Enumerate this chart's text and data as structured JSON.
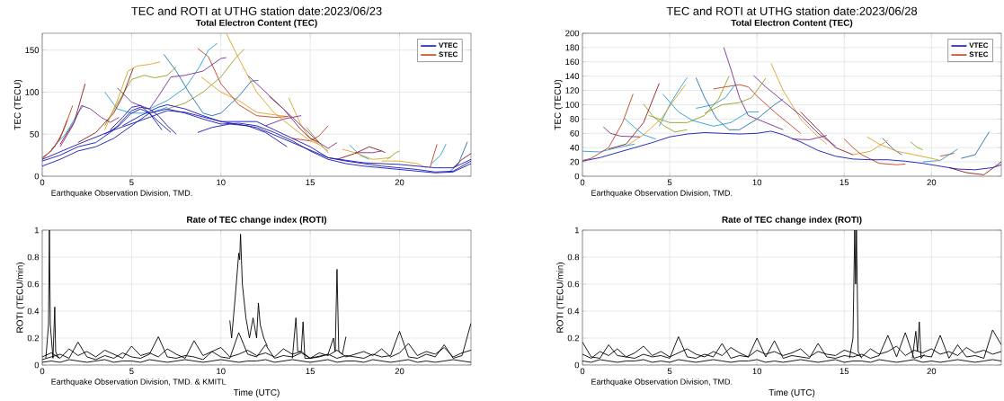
{
  "chart_data": [
    {
      "type": "line",
      "title": "TEC and ROTI at UTHG station date:2023/06/23",
      "subtitle": "Total Electron Content (TEC)",
      "ylabel": "TEC (TECU)",
      "xlim": [
        0,
        24
      ],
      "ylim": [
        0,
        170
      ],
      "xticks": [
        0,
        5,
        10,
        15,
        20
      ],
      "yticks": [
        0,
        50,
        100,
        150
      ],
      "grid": true,
      "legend": "top right",
      "annotations": [
        "Earthquake Observation Division, TMD."
      ],
      "series": [
        {
          "name": "VTEC",
          "color": "#1515b5",
          "x": [
            0,
            1,
            2,
            3,
            4,
            5,
            6,
            7,
            8,
            9,
            10,
            11,
            12,
            13,
            14,
            15,
            16,
            17,
            18,
            19,
            20,
            21,
            22,
            23,
            24
          ],
          "values": [
            12,
            20,
            30,
            35,
            45,
            60,
            75,
            80,
            75,
            68,
            62,
            63,
            60,
            52,
            42,
            30,
            20,
            15,
            12,
            10,
            8,
            6,
            4,
            5,
            15
          ]
        },
        {
          "color": "#1515b5",
          "x": [
            0,
            1,
            2,
            3,
            4,
            5,
            5.5,
            6,
            6.5,
            7,
            7.5
          ],
          "values": [
            18,
            25,
            35,
            40,
            55,
            78,
            82,
            80,
            72,
            60,
            50
          ]
        },
        {
          "color": "#1515b5",
          "x": [
            3.5,
            4.3,
            5,
            5.5,
            6,
            6.7
          ],
          "values": [
            50,
            60,
            75,
            80,
            75,
            55
          ]
        },
        {
          "color": "#1515b5",
          "x": [
            3.8,
            4.5,
            5,
            5.5,
            6,
            6.5,
            7.2
          ],
          "values": [
            55,
            70,
            82,
            84,
            75,
            65,
            52
          ]
        },
        {
          "color": "#1515b5",
          "x": [
            4.5,
            5.5,
            6.5,
            7,
            8,
            9,
            10,
            11,
            12,
            13,
            14,
            15,
            16,
            17,
            18,
            19,
            20,
            21,
            22,
            23,
            24
          ],
          "values": [
            60,
            72,
            82,
            85,
            80,
            72,
            65,
            65,
            65,
            55,
            45,
            35,
            22,
            18,
            15,
            12,
            10,
            8,
            5,
            6,
            18
          ]
        },
        {
          "color": "#1515b5",
          "x": [
            8.7,
            9.5,
            10.5,
            11.5,
            12.5,
            13.7
          ],
          "values": [
            52,
            58,
            62,
            60,
            52,
            35
          ]
        },
        {
          "color": "#1515b5",
          "x": [
            0,
            2,
            4,
            6,
            7,
            8,
            10,
            12,
            14,
            16,
            18,
            20,
            22,
            23,
            24
          ],
          "values": [
            20,
            38,
            55,
            70,
            78,
            76,
            65,
            58,
            40,
            22,
            16,
            14,
            10,
            10,
            20
          ]
        },
        {
          "name": "STEC",
          "color": "#c04020",
          "x": [
            0,
            0.7,
            1.2,
            1.7
          ],
          "values": [
            20,
            35,
            55,
            84
          ]
        },
        {
          "color": "#8b1a1a",
          "x": [
            0,
            0.5,
            1,
            1.4
          ],
          "values": [
            22,
            30,
            45,
            67
          ]
        },
        {
          "color": "#7b2d8b",
          "x": [
            1,
            1.7,
            2.2,
            2.7,
            3.3,
            3.8,
            4.3
          ],
          "values": [
            35,
            60,
            84,
            80,
            70,
            64,
            70
          ]
        },
        {
          "color": "#8b1a1a",
          "x": [
            1,
            1.8,
            2.4
          ],
          "values": [
            38,
            65,
            110
          ]
        },
        {
          "color": "#20a0d0",
          "x": [
            0.5,
            1.3,
            2,
            2.3
          ],
          "values": [
            32,
            50,
            75,
            84
          ]
        },
        {
          "color": "#e0a020",
          "x": [
            3.5,
            4.2,
            4.8,
            5.3,
            6,
            6.6
          ],
          "values": [
            55,
            90,
            125,
            131,
            133,
            136
          ]
        },
        {
          "color": "#8b1a1a",
          "x": [
            2,
            3,
            4,
            4.5,
            5.1
          ],
          "values": [
            40,
            52,
            75,
            95,
            129
          ]
        },
        {
          "color": "#90a020",
          "x": [
            3.5,
            4.3,
            5,
            5.7,
            6.3,
            7,
            7.5
          ],
          "values": [
            60,
            90,
            115,
            120,
            117,
            120,
            130
          ]
        },
        {
          "color": "#20a0d0",
          "x": [
            3.5,
            4.2,
            5,
            6,
            7
          ],
          "values": [
            100,
            80,
            75,
            75,
            82
          ]
        },
        {
          "color": "#7b2d8b",
          "x": [
            4.2,
            5,
            6,
            6.5,
            7.2,
            8,
            9,
            10,
            10.3
          ],
          "values": [
            105,
            88,
            80,
            95,
            118,
            120,
            125,
            140,
            141
          ]
        },
        {
          "color": "#1f6fb0",
          "x": [
            6.8,
            7.5,
            8.2,
            9,
            9.5,
            10,
            11,
            11.7,
            12.1
          ],
          "values": [
            145,
            125,
            100,
            75,
            72,
            75,
            95,
            113,
            114
          ]
        },
        {
          "color": "#20a0d0",
          "x": [
            6,
            7,
            8,
            8.8,
            9.3,
            9.8
          ],
          "values": [
            80,
            90,
            105,
            130,
            150,
            158
          ]
        },
        {
          "color": "#90a020",
          "x": [
            7,
            8,
            9,
            10,
            10.8,
            11.3
          ],
          "values": [
            80,
            87,
            100,
            118,
            140,
            151
          ]
        },
        {
          "color": "#c04020",
          "x": [
            8.7,
            9.3,
            10,
            11,
            12,
            13,
            13.8
          ],
          "values": [
            152,
            142,
            110,
            85,
            72,
            70,
            71
          ]
        },
        {
          "color": "#e0a020",
          "x": [
            8.9,
            10,
            11,
            12,
            13,
            13.7
          ],
          "values": [
            118,
            100,
            90,
            76,
            73,
            71
          ]
        },
        {
          "color": "#e0a020",
          "x": [
            10.3,
            11,
            12,
            13,
            14,
            15,
            15.5
          ],
          "values": [
            170,
            140,
            100,
            75,
            58,
            42,
            38
          ]
        },
        {
          "color": "#7b2d8b",
          "x": [
            11.5,
            12.5,
            13.5,
            14.5,
            15.5,
            16,
            16.5
          ],
          "values": [
            120,
            100,
            80,
            60,
            40,
            33,
            40
          ]
        },
        {
          "color": "#8b1a1a",
          "x": [
            12.7,
            13.5,
            14.5,
            15,
            15.5
          ],
          "values": [
            95,
            80,
            55,
            45,
            40
          ]
        },
        {
          "color": "#7b2d8b",
          "x": [
            12.5,
            13.5,
            14.5
          ],
          "values": [
            60,
            68,
            72
          ]
        },
        {
          "color": "#c04020",
          "x": [
            14,
            15,
            15.5,
            16
          ],
          "values": [
            45,
            42,
            48,
            60
          ]
        },
        {
          "color": "#e0a020",
          "x": [
            13.8,
            14.5,
            15,
            16
          ],
          "values": [
            93,
            60,
            45,
            30
          ]
        },
        {
          "color": "#90a020",
          "x": [
            14.8,
            15.5,
            16
          ],
          "values": [
            58,
            40,
            28
          ]
        },
        {
          "color": "#8b1a1a",
          "x": [
            16.5,
            17.5,
            18.3,
            19,
            19.2
          ],
          "values": [
            20,
            27,
            35,
            30,
            28
          ]
        },
        {
          "color": "#e0a020",
          "x": [
            16.8,
            17.5,
            18.5,
            19.5
          ],
          "values": [
            32,
            28,
            20,
            22
          ]
        },
        {
          "color": "#20a0d0",
          "x": [
            17.2,
            17.8,
            18.3
          ],
          "values": [
            37,
            25,
            20
          ]
        },
        {
          "color": "#7b2d8b",
          "x": [
            17.5,
            18.5,
            19
          ],
          "values": [
            28,
            28,
            30
          ]
        },
        {
          "color": "#90a020",
          "x": [
            19.3,
            19.8,
            20
          ],
          "values": [
            20,
            28,
            30
          ]
        },
        {
          "color": "#e0a020",
          "x": [
            19,
            20,
            21,
            21.5
          ],
          "values": [
            18,
            18,
            15,
            10
          ]
        },
        {
          "color": "#c04020",
          "x": [
            21.7,
            22.1
          ],
          "values": [
            10,
            38
          ]
        },
        {
          "color": "#20a0d0",
          "x": [
            21.8,
            22.3,
            22.6
          ],
          "values": [
            15,
            25,
            38
          ]
        },
        {
          "color": "#1f6fb0",
          "x": [
            22.8,
            23.3,
            23.8
          ],
          "values": [
            5,
            15,
            41
          ]
        },
        {
          "color": "#8b1a1a",
          "x": [
            23,
            23.5,
            24
          ],
          "values": [
            10,
            20,
            27
          ]
        }
      ]
    },
    {
      "type": "line",
      "title": "TEC and ROTI at UTHG station date:2023/06/28",
      "subtitle": "Total Electron Content (TEC)",
      "ylabel": "TEC (TECU)",
      "xlim": [
        0,
        24
      ],
      "ylim": [
        0,
        200
      ],
      "xticks": [
        0,
        5,
        10,
        15,
        20
      ],
      "yticks": [
        0,
        20,
        40,
        60,
        80,
        100,
        120,
        140,
        160,
        180,
        200
      ],
      "grid": true,
      "legend": "top right",
      "annotations": [
        "Earthquake Observation Division, TMD."
      ],
      "series": [
        {
          "name": "VTEC",
          "color": "#1515b5",
          "x": [
            0,
            1,
            2,
            3,
            4,
            5,
            6,
            7,
            8,
            9,
            10,
            10.8,
            11.5,
            12.5,
            13.5,
            14.5,
            15.5,
            16.5,
            17.5,
            18.5,
            19.5,
            20.5,
            21.5,
            22.5,
            23.5,
            24
          ],
          "values": [
            21,
            26,
            33,
            40,
            47,
            55,
            59,
            61,
            60,
            59,
            60,
            63,
            58,
            48,
            36,
            28,
            24,
            23,
            23,
            21,
            18,
            14,
            10,
            9,
            12,
            16
          ]
        },
        {
          "name": "STEC",
          "color": "#c04020",
          "x": [
            0,
            0.5,
            1.5,
            2.3,
            2.9
          ],
          "values": [
            22,
            25,
            40,
            75,
            115
          ]
        },
        {
          "color": "#20a0d0",
          "x": [
            0,
            1,
            2,
            3
          ],
          "values": [
            35,
            34,
            40,
            45
          ]
        },
        {
          "color": "#7b2d8b",
          "x": [
            1.2,
            1.6,
            2.2,
            3.3
          ],
          "values": [
            69,
            60,
            56,
            55
          ]
        },
        {
          "color": "#20a0d0",
          "x": [
            2.4,
            3,
            3.5,
            4.2
          ],
          "values": [
            81,
            68,
            58,
            52
          ]
        },
        {
          "color": "#8b1a1a",
          "x": [
            1.5,
            2.5,
            3.5,
            4.4
          ],
          "values": [
            38,
            45,
            75,
            130
          ]
        },
        {
          "color": "#90a020",
          "x": [
            3.5,
            4,
            4.7,
            5.3,
            6
          ],
          "values": [
            101,
            85,
            70,
            62,
            65
          ]
        },
        {
          "color": "#e0a020",
          "x": [
            2.5,
            3.5,
            4.5,
            5.2,
            5.9
          ],
          "values": [
            42,
            58,
            80,
            105,
            128
          ]
        },
        {
          "color": "#20a0d0",
          "x": [
            4.4,
            5,
            5.5,
            6
          ],
          "values": [
            70,
            100,
            120,
            138
          ]
        },
        {
          "color": "#20a0d0",
          "x": [
            4.6,
            5.5,
            6.3,
            7.5,
            8.5,
            9.5,
            10.1
          ],
          "values": [
            115,
            90,
            78,
            70,
            75,
            90,
            90
          ]
        },
        {
          "color": "#90a020",
          "x": [
            3.8,
            5,
            6,
            7,
            7.8,
            8.4
          ],
          "values": [
            85,
            75,
            75,
            85,
            108,
            140
          ]
        },
        {
          "color": "#1f6fb0",
          "x": [
            6.5,
            7,
            7.7,
            8.4,
            9,
            10,
            11,
            11.5
          ],
          "values": [
            138,
            110,
            80,
            65,
            65,
            80,
            100,
            108
          ]
        },
        {
          "color": "#20a0d0",
          "x": [
            6.5,
            7.5,
            8.2,
            8.8
          ],
          "values": [
            95,
            100,
            110,
            130
          ]
        },
        {
          "color": "#c04020",
          "x": [
            7.5,
            8.2,
            9,
            9.5,
            10,
            11,
            12.5
          ],
          "values": [
            122,
            125,
            128,
            125,
            112,
            90,
            60
          ]
        },
        {
          "color": "#7b2d8b",
          "x": [
            8.1,
            8.5,
            9,
            9.5,
            10.5,
            11.5
          ],
          "values": [
            180,
            150,
            110,
            85,
            75,
            65
          ]
        },
        {
          "color": "#90a020",
          "x": [
            7,
            8,
            9,
            9.7,
            10.5
          ],
          "values": [
            88,
            100,
            103,
            110,
            137
          ]
        },
        {
          "color": "#7b2d8b",
          "x": [
            9.8,
            10.5,
            11.5,
            12.5,
            13.5,
            14.5
          ],
          "values": [
            141,
            125,
            105,
            85,
            60,
            42
          ]
        },
        {
          "color": "#e0a020",
          "x": [
            10.8,
            11.5,
            12.5,
            13.5,
            14
          ],
          "values": [
            158,
            120,
            80,
            55,
            45
          ]
        },
        {
          "color": "#7b2d8b",
          "x": [
            12,
            13,
            14
          ],
          "values": [
            52,
            51,
            57
          ]
        },
        {
          "color": "#8b1a1a",
          "x": [
            12.5,
            13.5,
            14.5,
            15.5
          ],
          "values": [
            90,
            65,
            40,
            30
          ]
        },
        {
          "color": "#c04020",
          "x": [
            15,
            15.5,
            16,
            17,
            18,
            18.5
          ],
          "values": [
            52,
            40,
            30,
            18,
            16,
            17
          ]
        },
        {
          "color": "#e0a020",
          "x": [
            15.5,
            16.5,
            17.5
          ],
          "values": [
            30,
            35,
            50
          ]
        },
        {
          "color": "#e0a020",
          "x": [
            16.3,
            17,
            18,
            19,
            20,
            20.5
          ],
          "values": [
            55,
            45,
            35,
            30,
            25,
            22
          ]
        },
        {
          "color": "#1f6fb0",
          "x": [
            17.2,
            17.8,
            18.3
          ],
          "values": [
            53,
            38,
            30
          ]
        },
        {
          "color": "#90a020",
          "x": [
            18.8,
            19.2,
            19.5
          ],
          "values": [
            48,
            40,
            37
          ]
        },
        {
          "color": "#20a0d0",
          "x": [
            19.5,
            20.5,
            21.5
          ],
          "values": [
            20,
            22,
            38
          ]
        },
        {
          "color": "#1f6fb0",
          "x": [
            21.7,
            22.5,
            23.3
          ],
          "values": [
            25,
            30,
            62
          ]
        },
        {
          "color": "#8b1a1a",
          "x": [
            21,
            22,
            23,
            24
          ],
          "values": [
            12,
            5,
            2,
            20
          ]
        },
        {
          "color": "#c04020",
          "x": [
            20.5,
            21.3
          ],
          "values": [
            28,
            32
          ]
        }
      ]
    },
    {
      "type": "line",
      "title": "Rate of TEC change index (ROTI)",
      "xlabel": "Time (UTC)",
      "ylabel": "ROTI (TECU/min)",
      "xlim": [
        0,
        24
      ],
      "ylim": [
        0,
        1
      ],
      "xticks": [
        0,
        5,
        10,
        15,
        20
      ],
      "yticks": [
        0,
        0.2,
        0.4,
        0.6,
        0.8,
        1
      ],
      "grid": true,
      "annotations": [
        "Earthquake Observation Division, TMD. & KMITL"
      ],
      "x": [
        0,
        0.5,
        1,
        1.5,
        2,
        2.5,
        3,
        3.5,
        4,
        4.5,
        5,
        5.5,
        6,
        6.5,
        7,
        7.5,
        8,
        8.5,
        9,
        9.5,
        10,
        10.5,
        11,
        11.5,
        12,
        12.5,
        13,
        13.5,
        14,
        14.5,
        15,
        15.5,
        16,
        16.5,
        17,
        17.5,
        18,
        18.5,
        19,
        19.5,
        20,
        20.5,
        21,
        21.5,
        22,
        22.5,
        23,
        23.5,
        24
      ],
      "series": [
        {
          "color": "#000000",
          "values": [
            0.02,
            0.03,
            0.02,
            0.04,
            0.03,
            0.02,
            0.03,
            0.04,
            0.02,
            0.03,
            0.03,
            0.02,
            0.04,
            0.03,
            0.02,
            0.03,
            0.04,
            0.03,
            0.02,
            0.03,
            0.04,
            0.03,
            0.02,
            0.03,
            0.03,
            0.04,
            0.02,
            0.03,
            0.04,
            0.03,
            0.02,
            0.03,
            0.04,
            0.02,
            0.03,
            0.03,
            0.02,
            0.04,
            0.03,
            0.02,
            0.03,
            0.04,
            0.02,
            0.03,
            0.02,
            0.03,
            0.04,
            0.03,
            0.02
          ]
        },
        {
          "color": "#000000",
          "values": [
            0.06,
            0.09,
            0.05,
            0.12,
            0.07,
            0.1,
            0.06,
            0.11,
            0.08,
            0.05,
            0.14,
            0.07,
            0.09,
            0.06,
            0.12,
            0.08,
            0.05,
            0.18,
            0.07,
            0.1,
            0.13,
            0.06,
            0.08,
            0.11,
            0.07,
            0.09,
            0.06,
            0.12,
            0.08,
            0.1,
            0.05,
            0.09,
            0.07,
            0.11,
            0.06,
            0.08,
            0.1,
            0.07,
            0.12,
            0.06,
            0.09,
            0.16,
            0.07,
            0.1,
            0.08,
            0.13,
            0.06,
            0.09,
            0.11
          ]
        },
        {
          "color": "#000000",
          "values": [
            0.04,
            0.06,
            0.08,
            0.05,
            0.17,
            0.06,
            0.04,
            0.07,
            0.05,
            0.09,
            0.06,
            0.05,
            0.08,
            0.21,
            0.06,
            0.05,
            0.07,
            0.06,
            0.04,
            0.1,
            0.06,
            0.05,
            0.24,
            0.08,
            0.06,
            0.15,
            0.05,
            0.07,
            0.06,
            0.09,
            0.05,
            0.06,
            0.08,
            0.05,
            0.07,
            0.06,
            0.05,
            0.08,
            0.06,
            0.07,
            0.25,
            0.06,
            0.05,
            0.08,
            0.06,
            0.15,
            0.05,
            0.07,
            0.31
          ]
        },
        {
          "color": "#000000",
          "x": [
            0.2,
            0.35,
            0.4,
            0.45,
            0.6,
            0.7,
            0.75,
            0.9
          ],
          "values": [
            0.05,
            0.3,
            1.0,
            0.3,
            0.05,
            0.43,
            0.1,
            0.05
          ]
        },
        {
          "color": "#000000",
          "x": [
            10.5,
            10.6,
            10.8,
            11,
            11.05,
            11.1,
            11.2,
            11.4,
            11.6,
            11.8,
            12,
            12.1,
            12.2,
            12.4,
            12.6
          ],
          "values": [
            0.33,
            0.2,
            0.5,
            0.83,
            0.78,
            0.97,
            0.6,
            0.35,
            0.2,
            0.35,
            0.2,
            0.46,
            0.3,
            0.2,
            0.14
          ]
        },
        {
          "color": "#000000",
          "x": [
            14,
            14.2,
            14.3,
            14.5,
            14.6,
            14.7,
            15,
            16,
            16.3,
            16.4,
            16.5,
            16.6,
            16.8,
            17
          ],
          "values": [
            0.05,
            0.35,
            0.1,
            0.1,
            0.32,
            0.05,
            0.05,
            0.08,
            0.2,
            0.1,
            0.71,
            0.1,
            0.08,
            0.21
          ]
        }
      ]
    },
    {
      "type": "line",
      "title": "Rate of TEC change index (ROTI)",
      "xlabel": "Time (UTC)",
      "ylabel": "ROTI (TECU/min)",
      "xlim": [
        0,
        24
      ],
      "ylim": [
        0,
        1
      ],
      "xticks": [
        0,
        5,
        10,
        15,
        20
      ],
      "yticks": [
        0,
        0.2,
        0.4,
        0.6,
        0.8,
        1
      ],
      "grid": true,
      "annotations": [
        "Earthquake Observation Division, TMD."
      ],
      "x": [
        0,
        0.5,
        1,
        1.5,
        2,
        2.5,
        3,
        3.5,
        4,
        4.5,
        5,
        5.5,
        6,
        6.5,
        7,
        7.5,
        8,
        8.5,
        9,
        9.5,
        10,
        10.5,
        11,
        11.5,
        12,
        12.5,
        13,
        13.5,
        14,
        14.5,
        15,
        15.5,
        16,
        16.5,
        17,
        17.5,
        18,
        18.5,
        19,
        19.5,
        20,
        20.5,
        21,
        21.5,
        22,
        22.5,
        23,
        23.5,
        24
      ],
      "series": [
        {
          "color": "#000000",
          "values": [
            0.03,
            0.02,
            0.04,
            0.03,
            0.02,
            0.03,
            0.03,
            0.04,
            0.02,
            0.03,
            0.02,
            0.04,
            0.03,
            0.02,
            0.03,
            0.04,
            0.03,
            0.02,
            0.03,
            0.03,
            0.04,
            0.02,
            0.03,
            0.02,
            0.03,
            0.04,
            0.03,
            0.02,
            0.03,
            0.04,
            0.02,
            0.03,
            0.03,
            0.02,
            0.04,
            0.03,
            0.02,
            0.03,
            0.04,
            0.02,
            0.03,
            0.02,
            0.03,
            0.04,
            0.03,
            0.02,
            0.03,
            0.04,
            0.03
          ]
        },
        {
          "color": "#000000",
          "values": [
            0.08,
            0.05,
            0.1,
            0.07,
            0.12,
            0.06,
            0.09,
            0.14,
            0.07,
            0.1,
            0.06,
            0.09,
            0.12,
            0.08,
            0.06,
            0.1,
            0.07,
            0.13,
            0.09,
            0.06,
            0.11,
            0.08,
            0.1,
            0.07,
            0.09,
            0.12,
            0.06,
            0.1,
            0.08,
            0.07,
            0.11,
            0.09,
            0.06,
            0.12,
            0.08,
            0.1,
            0.14,
            0.07,
            0.11,
            0.09,
            0.12,
            0.08,
            0.1,
            0.07,
            0.13,
            0.09,
            0.11,
            0.08,
            0.1
          ]
        },
        {
          "color": "#000000",
          "values": [
            0.17,
            0.06,
            0.05,
            0.15,
            0.07,
            0.06,
            0.05,
            0.08,
            0.06,
            0.07,
            0.05,
            0.21,
            0.06,
            0.05,
            0.08,
            0.06,
            0.16,
            0.05,
            0.07,
            0.06,
            0.2,
            0.06,
            0.18,
            0.05,
            0.07,
            0.06,
            0.05,
            0.16,
            0.06,
            0.05,
            0.07,
            0.06,
            0.08,
            0.05,
            0.07,
            0.22,
            0.06,
            0.24,
            0.05,
            0.07,
            0.06,
            0.22,
            0.05,
            0.15,
            0.06,
            0.07,
            0.05,
            0.26,
            0.15
          ]
        },
        {
          "color": "#000000",
          "x": [
            15.3,
            15.5,
            15.6,
            15.65,
            15.7,
            15.8,
            16
          ],
          "values": [
            0.05,
            0.2,
            1.0,
            0.6,
            1.0,
            0.1,
            0.05
          ]
        },
        {
          "color": "#000000",
          "x": [
            18.9,
            19.1,
            19.2,
            19.3,
            19.4,
            19.6
          ],
          "values": [
            0.05,
            0.25,
            0.1,
            0.32,
            0.05,
            0.08
          ]
        }
      ]
    }
  ]
}
